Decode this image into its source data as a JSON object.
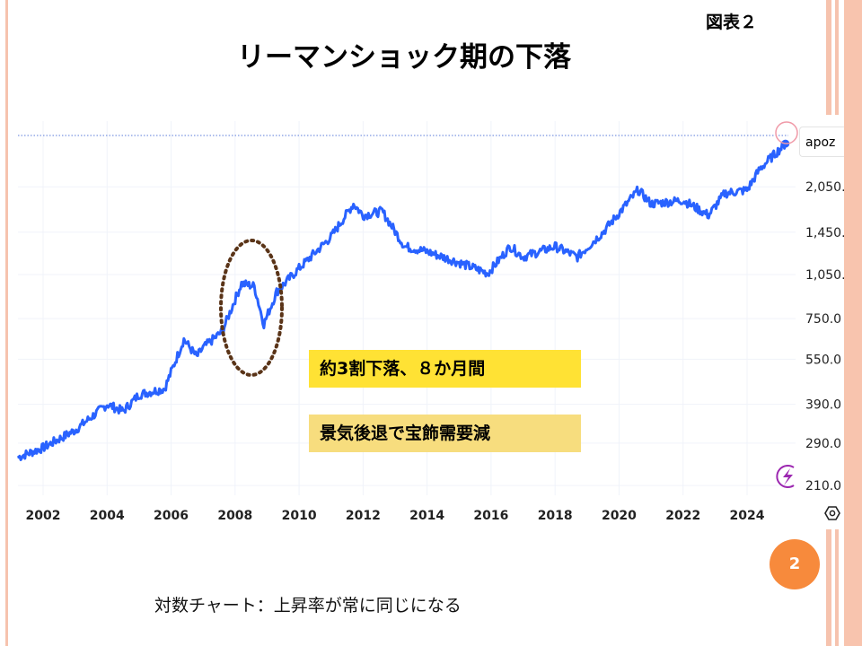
{
  "slide": {
    "title": "リーマンショック期の下落",
    "figure_label": "図表２",
    "page_number": "2",
    "caption": "対数チャート：上昇率が常に同じになる",
    "annotations": [
      "約3割下落、８か月間",
      "景気後退で宝飾需要減"
    ],
    "colors": {
      "accent": "#f78a3c",
      "stripe": "#f6c3ae",
      "line": "#2962ff",
      "ellipse": "#5a3418"
    }
  },
  "chart_data": {
    "type": "line",
    "title": "",
    "series_label": "apoz",
    "yscale": "log",
    "ylim": [
      195,
      3000
    ],
    "xlim": [
      2001.2,
      2025.4
    ],
    "x_ticks": [
      "2002",
      "2004",
      "2006",
      "2008",
      "2010",
      "2012",
      "2014",
      "2016",
      "2018",
      "2020",
      "2022",
      "2024"
    ],
    "y_ticks": [
      "2,050.",
      "1,450.",
      "1,050.",
      "750.0",
      "550.0",
      "390.0",
      "290.0",
      "210.0"
    ],
    "y_tick_values": [
      2050,
      1450,
      1050,
      750,
      550,
      390,
      290,
      210
    ],
    "grid": true,
    "series": [
      {
        "name": "apoz",
        "x": [
          2001.2,
          2002,
          2003,
          2004,
          2004.5,
          2005,
          2005.8,
          2006.4,
          2006.8,
          2007,
          2007.6,
          2008.2,
          2008.6,
          2008.9,
          2009.3,
          2010,
          2011,
          2011.7,
          2012,
          2012.6,
          2013.3,
          2014,
          2015,
          2015.9,
          2016.6,
          2017,
          2018,
          2018.7,
          2019.5,
          2020.6,
          2021,
          2022,
          2022.8,
          2023.3,
          2024,
          2024.4,
          2025.2
        ],
        "y": [
          260,
          280,
          320,
          390,
          370,
          420,
          440,
          640,
          560,
          600,
          680,
          980,
          960,
          720,
          920,
          1100,
          1400,
          1800,
          1650,
          1700,
          1300,
          1250,
          1150,
          1060,
          1300,
          1200,
          1300,
          1200,
          1450,
          2000,
          1800,
          1850,
          1650,
          1950,
          2000,
          2350,
          2850
        ]
      }
    ]
  }
}
